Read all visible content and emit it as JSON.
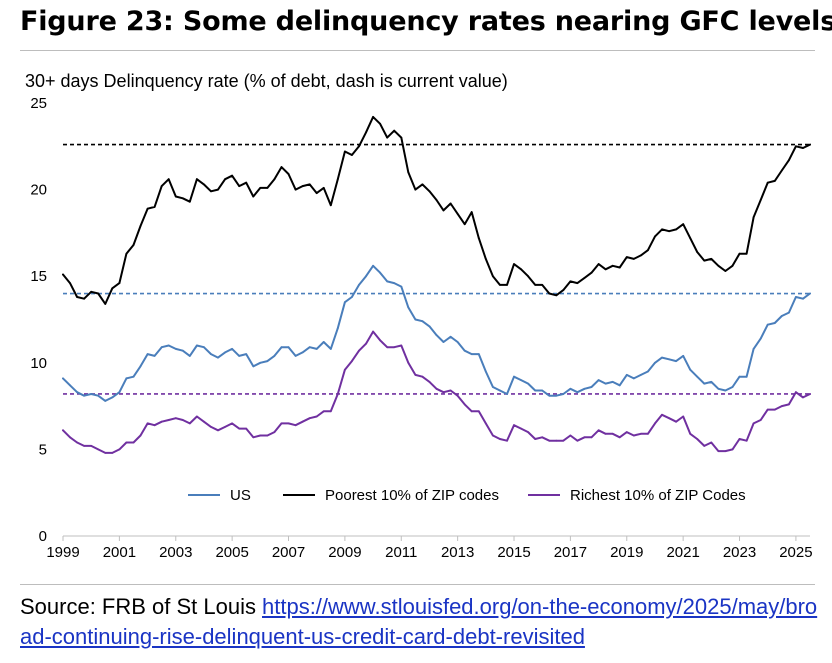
{
  "header": {
    "title": "Figure 23: Some delinquency rates nearing GFC levels"
  },
  "footer": {
    "source_label": "Source: FRB of St Louis",
    "source_url": "https://www.stlouisfed.org/on-the-economy/2025/may/broad-continuing-rise-delinquent-us-credit-card-debt-revisited"
  },
  "chart_data": {
    "type": "line",
    "title": "",
    "ylabel": "30+ days Delinquency rate (% of debt, dash is current value)",
    "xlabel": "",
    "ylim": [
      0,
      25
    ],
    "xlim": [
      1999,
      2025.5
    ],
    "y_ticks": [
      0,
      5,
      10,
      15,
      20,
      25
    ],
    "x_ticks": [
      1999,
      2001,
      2003,
      2005,
      2007,
      2009,
      2011,
      2013,
      2015,
      2017,
      2019,
      2021,
      2023,
      2025
    ],
    "grid": false,
    "legend_position": "bottom",
    "colors": {
      "US": "#4a7ebb",
      "Poorest": "#000000",
      "Richest": "#7030a0"
    },
    "series": [
      {
        "name": "US",
        "color": "#4a7ebb",
        "current_value_line": 14.0,
        "x": [
          1999.0,
          1999.25,
          1999.5,
          1999.75,
          2000.0,
          2000.25,
          2000.5,
          2000.75,
          2001.0,
          2001.25,
          2001.5,
          2001.75,
          2002.0,
          2002.25,
          2002.5,
          2002.75,
          2003.0,
          2003.25,
          2003.5,
          2003.75,
          2004.0,
          2004.25,
          2004.5,
          2004.75,
          2005.0,
          2005.25,
          2005.5,
          2005.75,
          2006.0,
          2006.25,
          2006.5,
          2006.75,
          2007.0,
          2007.25,
          2007.5,
          2007.75,
          2008.0,
          2008.25,
          2008.5,
          2008.75,
          2009.0,
          2009.25,
          2009.5,
          2009.75,
          2010.0,
          2010.25,
          2010.5,
          2010.75,
          2011.0,
          2011.25,
          2011.5,
          2011.75,
          2012.0,
          2012.25,
          2012.5,
          2012.75,
          2013.0,
          2013.25,
          2013.5,
          2013.75,
          2014.0,
          2014.25,
          2014.5,
          2014.75,
          2015.0,
          2015.25,
          2015.5,
          2015.75,
          2016.0,
          2016.25,
          2016.5,
          2016.75,
          2017.0,
          2017.25,
          2017.5,
          2017.75,
          2018.0,
          2018.25,
          2018.5,
          2018.75,
          2019.0,
          2019.25,
          2019.5,
          2019.75,
          2020.0,
          2020.25,
          2020.5,
          2020.75,
          2021.0,
          2021.25,
          2021.5,
          2021.75,
          2022.0,
          2022.25,
          2022.5,
          2022.75,
          2023.0,
          2023.25,
          2023.5,
          2023.75,
          2024.0,
          2024.25,
          2024.5,
          2024.75,
          2025.0,
          2025.25,
          2025.5
        ],
        "values": [
          9.1,
          8.7,
          8.3,
          8.1,
          8.2,
          8.1,
          7.8,
          8.0,
          8.3,
          9.1,
          9.2,
          9.8,
          10.5,
          10.4,
          10.9,
          11.0,
          10.8,
          10.7,
          10.4,
          11.0,
          10.9,
          10.5,
          10.3,
          10.6,
          10.8,
          10.4,
          10.5,
          9.8,
          10.0,
          10.1,
          10.4,
          10.9,
          10.9,
          10.4,
          10.6,
          10.9,
          10.8,
          11.2,
          10.8,
          12.0,
          13.5,
          13.8,
          14.5,
          15.0,
          15.6,
          15.2,
          14.7,
          14.6,
          14.4,
          13.2,
          12.5,
          12.4,
          12.1,
          11.6,
          11.2,
          11.5,
          11.2,
          10.7,
          10.5,
          10.5,
          9.5,
          8.6,
          8.4,
          8.2,
          9.2,
          9.0,
          8.8,
          8.4,
          8.4,
          8.1,
          8.1,
          8.2,
          8.5,
          8.3,
          8.5,
          8.6,
          9.0,
          8.8,
          8.9,
          8.7,
          9.3,
          9.1,
          9.3,
          9.5,
          10.0,
          10.3,
          10.2,
          10.1,
          10.4,
          9.6,
          9.2,
          8.8,
          8.9,
          8.5,
          8.4,
          8.6,
          9.2,
          9.2,
          10.8,
          11.4,
          12.2,
          12.3,
          12.7,
          12.9,
          13.8,
          13.7,
          14.0
        ]
      },
      {
        "name": "Poorest 10% of ZIP codes",
        "color": "#000000",
        "current_value_line": 22.6,
        "x": [
          1999.0,
          1999.25,
          1999.5,
          1999.75,
          2000.0,
          2000.25,
          2000.5,
          2000.75,
          2001.0,
          2001.25,
          2001.5,
          2001.75,
          2002.0,
          2002.25,
          2002.5,
          2002.75,
          2003.0,
          2003.25,
          2003.5,
          2003.75,
          2004.0,
          2004.25,
          2004.5,
          2004.75,
          2005.0,
          2005.25,
          2005.5,
          2005.75,
          2006.0,
          2006.25,
          2006.5,
          2006.75,
          2007.0,
          2007.25,
          2007.5,
          2007.75,
          2008.0,
          2008.25,
          2008.5,
          2008.75,
          2009.0,
          2009.25,
          2009.5,
          2009.75,
          2010.0,
          2010.25,
          2010.5,
          2010.75,
          2011.0,
          2011.25,
          2011.5,
          2011.75,
          2012.0,
          2012.25,
          2012.5,
          2012.75,
          2013.0,
          2013.25,
          2013.5,
          2013.75,
          2014.0,
          2014.25,
          2014.5,
          2014.75,
          2015.0,
          2015.25,
          2015.5,
          2015.75,
          2016.0,
          2016.25,
          2016.5,
          2016.75,
          2017.0,
          2017.25,
          2017.5,
          2017.75,
          2018.0,
          2018.25,
          2018.5,
          2018.75,
          2019.0,
          2019.25,
          2019.5,
          2019.75,
          2020.0,
          2020.25,
          2020.5,
          2020.75,
          2021.0,
          2021.25,
          2021.5,
          2021.75,
          2022.0,
          2022.25,
          2022.5,
          2022.75,
          2023.0,
          2023.25,
          2023.5,
          2023.75,
          2024.0,
          2024.25,
          2024.5,
          2024.75,
          2025.0,
          2025.25,
          2025.5
        ],
        "values": [
          15.1,
          14.6,
          13.8,
          13.7,
          14.1,
          14.0,
          13.4,
          14.3,
          14.6,
          16.3,
          16.8,
          17.9,
          18.9,
          19.0,
          20.2,
          20.6,
          19.6,
          19.5,
          19.3,
          20.6,
          20.3,
          19.9,
          20.0,
          20.6,
          20.8,
          20.2,
          20.4,
          19.6,
          20.1,
          20.1,
          20.6,
          21.3,
          20.9,
          20.0,
          20.2,
          20.3,
          19.8,
          20.1,
          19.1,
          20.6,
          22.2,
          22.0,
          22.5,
          23.3,
          24.2,
          23.8,
          23.0,
          23.4,
          23.0,
          21.0,
          20.0,
          20.3,
          19.9,
          19.4,
          18.8,
          19.2,
          18.6,
          18.0,
          18.7,
          17.2,
          16.0,
          15.0,
          14.5,
          14.5,
          15.7,
          15.4,
          15.0,
          14.5,
          14.5,
          14.0,
          13.9,
          14.2,
          14.7,
          14.6,
          14.9,
          15.2,
          15.7,
          15.4,
          15.6,
          15.5,
          16.1,
          16.0,
          16.2,
          16.5,
          17.3,
          17.7,
          17.6,
          17.7,
          18.0,
          17.2,
          16.4,
          15.9,
          16.0,
          15.6,
          15.3,
          15.6,
          16.3,
          16.3,
          18.4,
          19.4,
          20.4,
          20.5,
          21.1,
          21.7,
          22.5,
          22.4,
          22.6
        ]
      },
      {
        "name": "Richest 10% of ZIP Codes",
        "color": "#7030a0",
        "current_value_line": 8.2,
        "x": [
          1999.0,
          1999.25,
          1999.5,
          1999.75,
          2000.0,
          2000.25,
          2000.5,
          2000.75,
          2001.0,
          2001.25,
          2001.5,
          2001.75,
          2002.0,
          2002.25,
          2002.5,
          2002.75,
          2003.0,
          2003.25,
          2003.5,
          2003.75,
          2004.0,
          2004.25,
          2004.5,
          2004.75,
          2005.0,
          2005.25,
          2005.5,
          2005.75,
          2006.0,
          2006.25,
          2006.5,
          2006.75,
          2007.0,
          2007.25,
          2007.5,
          2007.75,
          2008.0,
          2008.25,
          2008.5,
          2008.75,
          2009.0,
          2009.25,
          2009.5,
          2009.75,
          2010.0,
          2010.25,
          2010.5,
          2010.75,
          2011.0,
          2011.25,
          2011.5,
          2011.75,
          2012.0,
          2012.25,
          2012.5,
          2012.75,
          2013.0,
          2013.25,
          2013.5,
          2013.75,
          2014.0,
          2014.25,
          2014.5,
          2014.75,
          2015.0,
          2015.25,
          2015.5,
          2015.75,
          2016.0,
          2016.25,
          2016.5,
          2016.75,
          2017.0,
          2017.25,
          2017.5,
          2017.75,
          2018.0,
          2018.25,
          2018.5,
          2018.75,
          2019.0,
          2019.25,
          2019.5,
          2019.75,
          2020.0,
          2020.25,
          2020.5,
          2020.75,
          2021.0,
          2021.25,
          2021.5,
          2021.75,
          2022.0,
          2022.25,
          2022.5,
          2022.75,
          2023.0,
          2023.25,
          2023.5,
          2023.75,
          2024.0,
          2024.25,
          2024.5,
          2024.75,
          2025.0,
          2025.25,
          2025.5
        ],
        "values": [
          6.1,
          5.7,
          5.4,
          5.2,
          5.2,
          5.0,
          4.8,
          4.8,
          5.0,
          5.4,
          5.4,
          5.8,
          6.5,
          6.4,
          6.6,
          6.7,
          6.8,
          6.7,
          6.5,
          6.9,
          6.6,
          6.3,
          6.1,
          6.3,
          6.5,
          6.2,
          6.2,
          5.7,
          5.8,
          5.8,
          6.0,
          6.5,
          6.5,
          6.4,
          6.6,
          6.8,
          6.9,
          7.2,
          7.2,
          8.2,
          9.6,
          10.1,
          10.7,
          11.1,
          11.8,
          11.3,
          10.9,
          10.9,
          11.0,
          10.0,
          9.3,
          9.2,
          8.9,
          8.5,
          8.3,
          8.4,
          8.1,
          7.6,
          7.2,
          7.2,
          6.5,
          5.8,
          5.6,
          5.5,
          6.4,
          6.2,
          6.0,
          5.6,
          5.7,
          5.5,
          5.5,
          5.5,
          5.8,
          5.5,
          5.7,
          5.7,
          6.1,
          5.9,
          5.9,
          5.7,
          6.0,
          5.8,
          5.9,
          5.9,
          6.5,
          7.0,
          6.8,
          6.6,
          6.9,
          5.9,
          5.6,
          5.2,
          5.4,
          4.9,
          4.9,
          5.0,
          5.6,
          5.5,
          6.5,
          6.7,
          7.3,
          7.3,
          7.5,
          7.6,
          8.3,
          8.0,
          8.2
        ]
      }
    ]
  }
}
